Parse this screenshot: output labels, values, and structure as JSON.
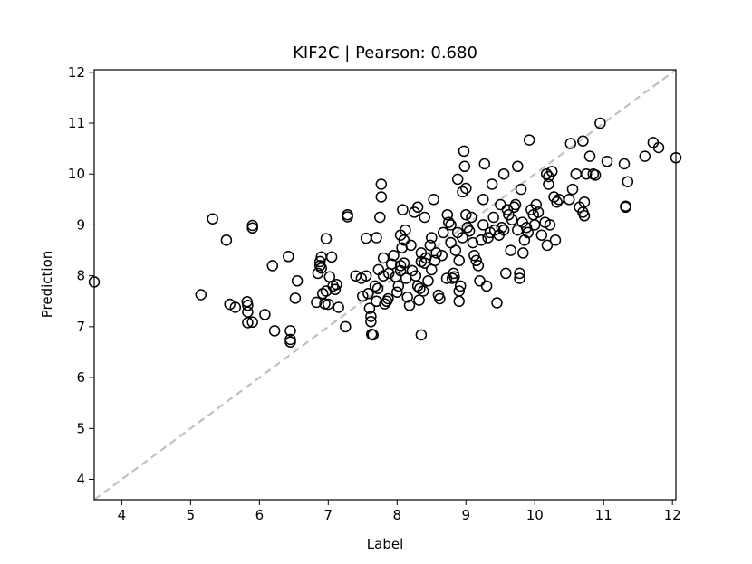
{
  "chart_data": {
    "type": "scatter",
    "title": "KIF2C  |  Pearson: 0.680",
    "xlabel": "Label",
    "ylabel": "Prediction",
    "xlim": [
      3.6,
      12.05
    ],
    "ylim": [
      3.6,
      12.05
    ],
    "xticks": [
      4,
      5,
      6,
      7,
      8,
      9,
      10,
      11,
      12
    ],
    "yticks": [
      4,
      5,
      6,
      7,
      8,
      9,
      10,
      11,
      12
    ],
    "grid": false,
    "marker": "open-circle",
    "marker_color": "#000000",
    "identity_line": {
      "style": "dashed",
      "color": "#c0c0c0"
    },
    "points": [
      [
        3.6,
        7.88
      ],
      [
        5.15,
        7.63
      ],
      [
        5.32,
        9.12
      ],
      [
        5.52,
        8.7
      ],
      [
        5.57,
        7.44
      ],
      [
        5.65,
        7.38
      ],
      [
        5.82,
        7.49
      ],
      [
        5.83,
        7.42
      ],
      [
        5.83,
        7.29
      ],
      [
        5.83,
        7.08
      ],
      [
        5.9,
        8.99
      ],
      [
        5.9,
        8.94
      ],
      [
        5.9,
        7.09
      ],
      [
        6.08,
        7.24
      ],
      [
        6.19,
        8.2
      ],
      [
        6.22,
        6.92
      ],
      [
        6.42,
        8.38
      ],
      [
        6.45,
        6.92
      ],
      [
        6.45,
        6.75
      ],
      [
        6.45,
        6.7
      ],
      [
        6.52,
        7.56
      ],
      [
        6.55,
        7.9
      ],
      [
        6.83,
        7.48
      ],
      [
        6.85,
        8.05
      ],
      [
        6.88,
        8.28
      ],
      [
        6.88,
        8.2
      ],
      [
        6.9,
        8.37
      ],
      [
        6.9,
        8.15
      ],
      [
        6.92,
        7.65
      ],
      [
        6.95,
        7.45
      ],
      [
        6.97,
        7.7
      ],
      [
        6.97,
        8.73
      ],
      [
        7.0,
        7.44
      ],
      [
        7.02,
        7.98
      ],
      [
        7.05,
        8.37
      ],
      [
        7.07,
        7.8
      ],
      [
        7.1,
        7.73
      ],
      [
        7.12,
        7.83
      ],
      [
        7.15,
        7.38
      ],
      [
        7.25,
        7.0
      ],
      [
        7.28,
        9.2
      ],
      [
        7.28,
        9.16
      ],
      [
        7.4,
        8.0
      ],
      [
        7.48,
        7.95
      ],
      [
        7.5,
        7.6
      ],
      [
        7.55,
        8.74
      ],
      [
        7.55,
        8.0
      ],
      [
        7.58,
        7.65
      ],
      [
        7.6,
        7.36
      ],
      [
        7.62,
        7.2
      ],
      [
        7.62,
        7.1
      ],
      [
        7.63,
        6.85
      ],
      [
        7.65,
        6.84
      ],
      [
        7.68,
        7.8
      ],
      [
        7.7,
        8.75
      ],
      [
        7.7,
        7.5
      ],
      [
        7.72,
        7.75
      ],
      [
        7.73,
        8.12
      ],
      [
        7.75,
        9.15
      ],
      [
        7.77,
        9.8
      ],
      [
        7.77,
        9.55
      ],
      [
        7.8,
        8.35
      ],
      [
        7.8,
        8.0
      ],
      [
        7.82,
        7.45
      ],
      [
        7.85,
        7.5
      ],
      [
        7.87,
        7.55
      ],
      [
        7.88,
        8.05
      ],
      [
        7.92,
        8.23
      ],
      [
        7.95,
        8.4
      ],
      [
        7.98,
        7.98
      ],
      [
        8.0,
        7.68
      ],
      [
        8.02,
        7.8
      ],
      [
        8.05,
        8.8
      ],
      [
        8.05,
        8.2
      ],
      [
        8.05,
        8.1
      ],
      [
        8.07,
        8.55
      ],
      [
        8.08,
        9.3
      ],
      [
        8.1,
        8.7
      ],
      [
        8.1,
        8.25
      ],
      [
        8.12,
        8.9
      ],
      [
        8.13,
        7.95
      ],
      [
        8.15,
        7.58
      ],
      [
        8.18,
        7.42
      ],
      [
        8.2,
        8.6
      ],
      [
        8.22,
        8.1
      ],
      [
        8.25,
        9.25
      ],
      [
        8.27,
        8.0
      ],
      [
        8.3,
        9.35
      ],
      [
        8.3,
        7.8
      ],
      [
        8.32,
        7.52
      ],
      [
        8.33,
        7.75
      ],
      [
        8.35,
        8.45
      ],
      [
        8.35,
        8.28
      ],
      [
        8.35,
        6.84
      ],
      [
        8.38,
        7.7
      ],
      [
        8.4,
        9.15
      ],
      [
        8.4,
        8.25
      ],
      [
        8.42,
        8.35
      ],
      [
        8.45,
        7.9
      ],
      [
        8.48,
        8.6
      ],
      [
        8.5,
        8.75
      ],
      [
        8.5,
        8.12
      ],
      [
        8.53,
        9.5
      ],
      [
        8.55,
        8.3
      ],
      [
        8.57,
        8.45
      ],
      [
        8.6,
        7.62
      ],
      [
        8.62,
        7.55
      ],
      [
        8.65,
        8.4
      ],
      [
        8.67,
        8.85
      ],
      [
        8.72,
        7.95
      ],
      [
        8.73,
        9.2
      ],
      [
        8.75,
        9.05
      ],
      [
        8.78,
        9.0
      ],
      [
        8.78,
        8.65
      ],
      [
        8.8,
        7.95
      ],
      [
        8.82,
        8.05
      ],
      [
        8.83,
        7.98
      ],
      [
        8.85,
        8.5
      ],
      [
        8.88,
        9.9
      ],
      [
        8.88,
        8.85
      ],
      [
        8.9,
        8.3
      ],
      [
        8.9,
        7.7
      ],
      [
        8.9,
        7.5
      ],
      [
        8.92,
        7.8
      ],
      [
        8.95,
        9.65
      ],
      [
        8.95,
        8.75
      ],
      [
        8.97,
        10.45
      ],
      [
        8.98,
        10.15
      ],
      [
        9.0,
        9.72
      ],
      [
        9.0,
        9.2
      ],
      [
        9.02,
        8.95
      ],
      [
        9.05,
        8.88
      ],
      [
        9.08,
        9.15
      ],
      [
        9.1,
        8.65
      ],
      [
        9.12,
        8.4
      ],
      [
        9.15,
        8.3
      ],
      [
        9.18,
        8.2
      ],
      [
        9.2,
        7.9
      ],
      [
        9.22,
        8.7
      ],
      [
        9.25,
        9.5
      ],
      [
        9.25,
        9.0
      ],
      [
        9.27,
        10.2
      ],
      [
        9.3,
        7.8
      ],
      [
        9.32,
        8.75
      ],
      [
        9.35,
        8.85
      ],
      [
        9.38,
        9.8
      ],
      [
        9.4,
        9.15
      ],
      [
        9.42,
        8.9
      ],
      [
        9.45,
        7.47
      ],
      [
        9.48,
        8.8
      ],
      [
        9.5,
        9.4
      ],
      [
        9.52,
        8.95
      ],
      [
        9.55,
        10.0
      ],
      [
        9.55,
        8.9
      ],
      [
        9.58,
        8.05
      ],
      [
        9.6,
        9.3
      ],
      [
        9.62,
        9.2
      ],
      [
        9.65,
        8.5
      ],
      [
        9.67,
        9.1
      ],
      [
        9.7,
        9.35
      ],
      [
        9.72,
        9.4
      ],
      [
        9.75,
        10.15
      ],
      [
        9.75,
        8.9
      ],
      [
        9.78,
        8.05
      ],
      [
        9.78,
        7.95
      ],
      [
        9.8,
        9.7
      ],
      [
        9.82,
        9.05
      ],
      [
        9.83,
        8.45
      ],
      [
        9.85,
        8.7
      ],
      [
        9.88,
        8.95
      ],
      [
        9.9,
        8.85
      ],
      [
        9.92,
        10.67
      ],
      [
        9.95,
        9.3
      ],
      [
        9.98,
        9.2
      ],
      [
        10.0,
        9.0
      ],
      [
        10.02,
        9.4
      ],
      [
        10.05,
        9.25
      ],
      [
        10.1,
        8.8
      ],
      [
        10.15,
        9.05
      ],
      [
        10.17,
        10.0
      ],
      [
        10.18,
        8.6
      ],
      [
        10.2,
        9.95
      ],
      [
        10.2,
        9.8
      ],
      [
        10.22,
        9.0
      ],
      [
        10.25,
        10.05
      ],
      [
        10.28,
        9.55
      ],
      [
        10.3,
        8.7
      ],
      [
        10.32,
        9.45
      ],
      [
        10.35,
        9.5
      ],
      [
        10.5,
        9.5
      ],
      [
        10.52,
        10.6
      ],
      [
        10.55,
        9.7
      ],
      [
        10.6,
        10.0
      ],
      [
        10.65,
        9.35
      ],
      [
        10.7,
        10.65
      ],
      [
        10.7,
        9.25
      ],
      [
        10.72,
        9.45
      ],
      [
        10.72,
        9.18
      ],
      [
        10.75,
        10.0
      ],
      [
        10.8,
        10.35
      ],
      [
        10.85,
        10.0
      ],
      [
        10.88,
        9.98
      ],
      [
        10.95,
        11.0
      ],
      [
        11.05,
        10.25
      ],
      [
        11.3,
        10.2
      ],
      [
        11.32,
        9.37
      ],
      [
        11.32,
        9.35
      ],
      [
        11.35,
        9.85
      ],
      [
        11.6,
        10.35
      ],
      [
        11.72,
        10.62
      ],
      [
        11.8,
        10.52
      ],
      [
        12.05,
        10.32
      ]
    ]
  }
}
